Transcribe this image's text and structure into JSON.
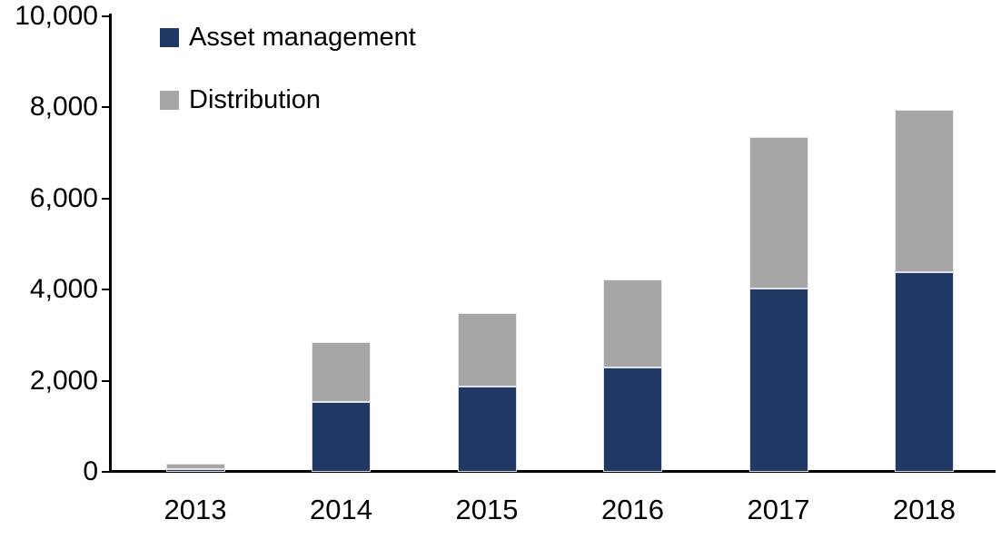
{
  "chart_data": {
    "type": "bar",
    "stacked": true,
    "title": "",
    "xlabel": "",
    "ylabel": "",
    "categories": [
      "2013",
      "2014",
      "2015",
      "2016",
      "2017",
      "2018"
    ],
    "series": [
      {
        "name": "Asset management",
        "color": "#1F3864",
        "values": [
          60,
          1540,
          1870,
          2290,
          4030,
          4380
        ]
      },
      {
        "name": "Distribution",
        "color": "#A6A6A6",
        "values": [
          115,
          1315,
          1615,
          1930,
          3320,
          3570
        ]
      }
    ],
    "totals": [
      175,
      2855,
      3485,
      4220,
      7350,
      7950
    ],
    "ylim": [
      0,
      10000
    ],
    "yticks": [
      {
        "value": 0,
        "label": "0"
      },
      {
        "value": 2000,
        "label": "2,000"
      },
      {
        "value": 4000,
        "label": "4,000"
      },
      {
        "value": 6000,
        "label": "6,000"
      },
      {
        "value": 8000,
        "label": "8,000"
      },
      {
        "value": 10000,
        "label": "10,000"
      }
    ],
    "grid": false,
    "legend_position": "top-left",
    "axis_color": "#000000",
    "background_color": "#FFFFFF",
    "tick_label_color": "#000000"
  }
}
